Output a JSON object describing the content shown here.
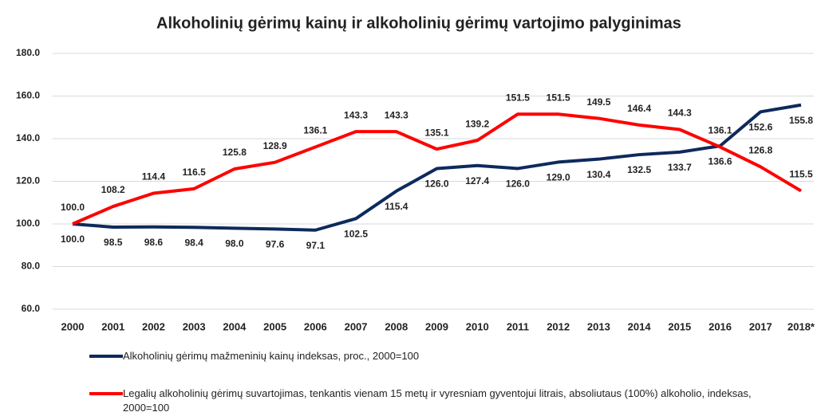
{
  "chart_data": {
    "type": "line",
    "title": "Alkoholinių gėrimų kainų ir alkoholinių gėrimų vartojimo palyginimas",
    "categories": [
      "2000",
      "2001",
      "2002",
      "2003",
      "2004",
      "2005",
      "2006",
      "2007",
      "2008",
      "2009",
      "2010",
      "2011",
      "2012",
      "2013",
      "2014",
      "2015",
      "2016",
      "2017",
      "2018*"
    ],
    "series": [
      {
        "name": "Alkoholinių gėrimų mažmeninių kainų indeksas, proc., 2000=100",
        "color": "#0d2a5c",
        "values": [
          100.0,
          98.5,
          98.6,
          98.4,
          98.0,
          97.6,
          97.1,
          102.5,
          115.4,
          126.0,
          127.4,
          126.0,
          129.0,
          130.4,
          132.5,
          133.7,
          136.6,
          152.6,
          155.8
        ],
        "value_labels": [
          "100.0",
          "98.5",
          "98.6",
          "98.4",
          "98.0",
          "97.6",
          "97.1",
          "102.5",
          "115.4",
          "126.0",
          "127.4",
          "126.0",
          "129.0",
          "130.4",
          "132.5",
          "133.7",
          "136.6",
          "152.6",
          "155.8"
        ]
      },
      {
        "name": "Legalių alkoholinių gėrimų suvartojimas, tenkantis vienam 15 metų ir vyresniam gyventojui litrais, absoliutaus (100%) alkoholio, indeksas, 2000=100",
        "color": "#ff0000",
        "values": [
          100.0,
          108.2,
          114.4,
          116.5,
          125.8,
          128.9,
          136.1,
          143.3,
          143.3,
          135.1,
          139.2,
          151.5,
          151.5,
          149.5,
          146.4,
          144.3,
          136.1,
          126.8,
          115.5
        ],
        "value_labels": [
          "100.0",
          "108.2",
          "114.4",
          "116.5",
          "125.8",
          "128.9",
          "136.1",
          "143.3",
          "143.3",
          "135.1",
          "139.2",
          "151.5",
          "151.5",
          "149.5",
          "146.4",
          "144.3",
          "136.1",
          "126.8",
          "115.5"
        ]
      }
    ],
    "ylim": [
      60,
      180
    ],
    "yticks": [
      {
        "value": 60,
        "label": "60.0"
      },
      {
        "value": 80,
        "label": "80.0"
      },
      {
        "value": 100,
        "label": "100.0"
      },
      {
        "value": 120,
        "label": "120.0"
      },
      {
        "value": 140,
        "label": "140.0"
      },
      {
        "value": 160,
        "label": "160.0"
      },
      {
        "value": 180,
        "label": "180.0"
      }
    ],
    "grid": true
  }
}
